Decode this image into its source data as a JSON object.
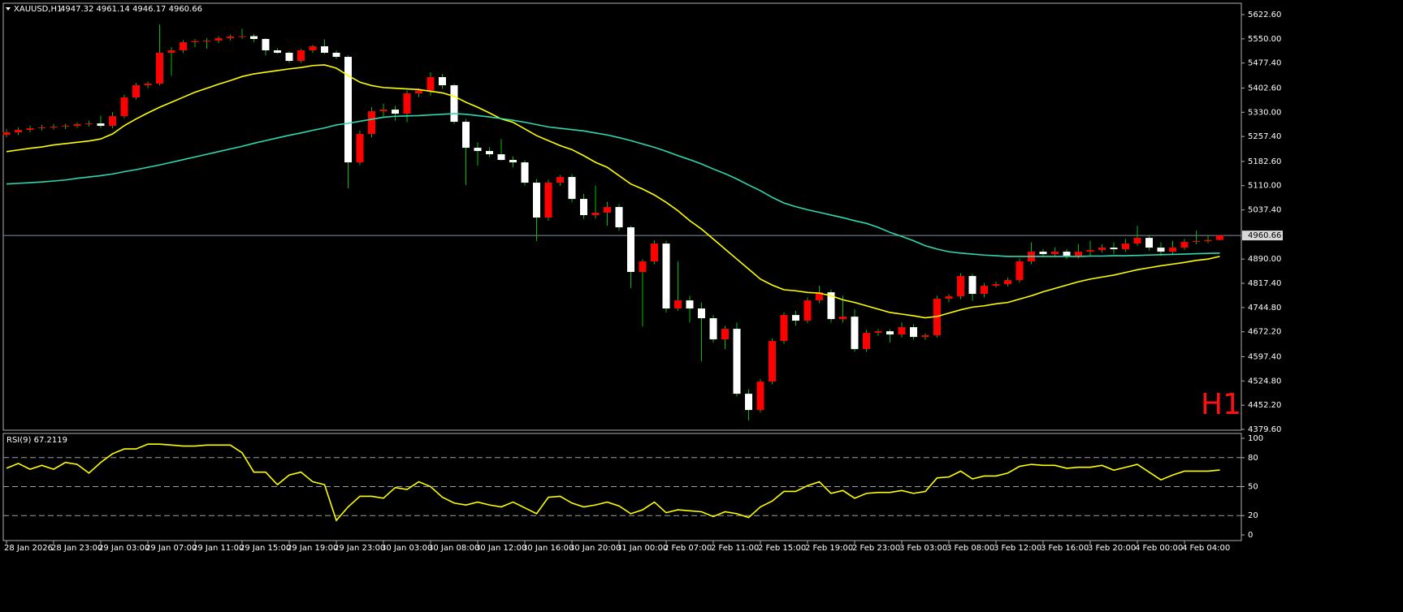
{
  "chart_data": [
    {
      "type": "candlestick",
      "title": "XAUUSD,H1",
      "ohlc_label": "4947.32 4961.14 4946.17 4960.66",
      "watermark": "H1",
      "ylim": [
        4377.2,
        5656.7
      ],
      "yticks": [
        {
          "value": 5622.6,
          "label": "5622.60"
        },
        {
          "value": 5550,
          "label": "5550.00"
        },
        {
          "value": 5477.4,
          "label": "5477.40"
        },
        {
          "value": 5402.6,
          "label": "5402.60"
        },
        {
          "value": 5330,
          "label": "5330.00"
        },
        {
          "value": 5257.4,
          "label": "5257.40"
        },
        {
          "value": 5182.6,
          "label": "5182.60"
        },
        {
          "value": 5110,
          "label": "5110.00"
        },
        {
          "value": 5037.4,
          "label": "5037.40"
        },
        {
          "value": 4890,
          "label": "4890.00"
        },
        {
          "value": 4817.4,
          "label": "4817.40"
        },
        {
          "value": 4744.8,
          "label": "4744.80"
        },
        {
          "value": 4672.2,
          "label": "4672.20"
        },
        {
          "value": 4597.4,
          "label": "4597.40"
        },
        {
          "value": 4524.8,
          "label": "4524.80"
        },
        {
          "value": 4452.2,
          "label": "4452.20"
        },
        {
          "value": 4379.6,
          "label": "4379.60"
        }
      ],
      "last_price": {
        "value": 4960.66,
        "label": "4960.66"
      },
      "up_color": "#ff0000",
      "down_color": "#ffffff",
      "wick_color": "#00c000",
      "categories": [
        "28 Jan 2026",
        null,
        null,
        null,
        "28 Jan 23:00",
        null,
        null,
        null,
        "29 Jan 03:00",
        null,
        null,
        null,
        "29 Jan 07:00",
        null,
        null,
        null,
        "29 Jan 11:00",
        null,
        null,
        null,
        "29 Jan 15:00",
        null,
        null,
        null,
        "29 Jan 19:00",
        null,
        null,
        null,
        "29 Jan 23:00",
        null,
        null,
        null,
        "30 Jan 03:00",
        null,
        null,
        null,
        "30 Jan 08:00",
        null,
        null,
        null,
        "30 Jan 12:00",
        null,
        null,
        null,
        "30 Jan 16:00",
        null,
        null,
        null,
        "30 Jan 20:00",
        null,
        null,
        null,
        "31 Jan 00:00",
        null,
        null,
        null,
        "2 Feb 07:00",
        null,
        null,
        null,
        "2 Feb 11:00",
        null,
        null,
        null,
        "2 Feb 15:00",
        null,
        null,
        null,
        "2 Feb 19:00",
        null,
        null,
        null,
        "2 Feb 23:00",
        null,
        null,
        null,
        "3 Feb 03:00",
        null,
        null,
        null,
        "3 Feb 08:00",
        null,
        null,
        null,
        "3 Feb 12:00",
        null,
        null,
        null,
        "3 Feb 16:00",
        null,
        null,
        null,
        "3 Feb 20:00",
        null,
        null,
        null,
        "4 Feb 00:00",
        null,
        null,
        null,
        "4 Feb 04:00",
        null,
        null,
        null
      ],
      "candles": [
        [
          5262,
          5280,
          5255,
          5269.8
        ],
        [
          5269.8,
          5285,
          5262,
          5277.1
        ],
        [
          5277.1,
          5290,
          5270,
          5282
        ],
        [
          5282,
          5292,
          5275,
          5284.4
        ],
        [
          5284.4,
          5295,
          5278,
          5286.9
        ],
        [
          5286.9,
          5296,
          5280,
          5289.3
        ],
        [
          5289.3,
          5300,
          5283,
          5294.2
        ],
        [
          5294.2,
          5305,
          5288,
          5296.6
        ],
        [
          5296.6,
          5320,
          5283,
          5289.3
        ],
        [
          5289.3,
          5330,
          5282,
          5318.5
        ],
        [
          5318.5,
          5382,
          5312,
          5374.4
        ],
        [
          5374.4,
          5418,
          5368,
          5410.9
        ],
        [
          5410.9,
          5422,
          5402,
          5415.8
        ],
        [
          5415.8,
          5593.4,
          5410,
          5508.3
        ],
        [
          5508.3,
          5525,
          5440,
          5515.6
        ],
        [
          5515.6,
          5546,
          5508,
          5539.9
        ],
        [
          5539.9,
          5550,
          5525,
          5543
        ],
        [
          5543,
          5552,
          5520,
          5544.7
        ],
        [
          5544.7,
          5558,
          5537,
          5552
        ],
        [
          5552,
          5562,
          5545,
          5556.9
        ],
        [
          5556.9,
          5580,
          5550,
          5558
        ],
        [
          5558,
          5565,
          5540,
          5549.6
        ],
        [
          5549.6,
          5552,
          5500,
          5515.6
        ],
        [
          5515.6,
          5522,
          5505,
          5508.3
        ],
        [
          5508.3,
          5512,
          5478,
          5483.9
        ],
        [
          5483.9,
          5520,
          5478,
          5515.6
        ],
        [
          5515.6,
          5532,
          5508,
          5527.7
        ],
        [
          5527.7,
          5548,
          5505,
          5508.3
        ],
        [
          5508.3,
          5515,
          5490,
          5496.1
        ],
        [
          5496.1,
          5500,
          5102,
          5179.8
        ],
        [
          5179.8,
          5275,
          5172,
          5265
        ],
        [
          5265,
          5345,
          5255,
          5333.1
        ],
        [
          5333.1,
          5356,
          5315,
          5337.9
        ],
        [
          5337.9,
          5350,
          5305,
          5325.8
        ],
        [
          5325.8,
          5395,
          5300,
          5386.6
        ],
        [
          5386.6,
          5402,
          5375,
          5395
        ],
        [
          5395,
          5450,
          5380,
          5435.3
        ],
        [
          5435.3,
          5445,
          5400,
          5410.9
        ],
        [
          5410.9,
          5415,
          5295,
          5301.4
        ],
        [
          5301.4,
          5310,
          5112,
          5223.6
        ],
        [
          5223.6,
          5240,
          5170,
          5213.9
        ],
        [
          5213.9,
          5225,
          5195,
          5204.1
        ],
        [
          5204.1,
          5250,
          5185,
          5187.1
        ],
        [
          5187.1,
          5198,
          5165,
          5179.8
        ],
        [
          5179.8,
          5186,
          5110,
          5119
        ],
        [
          5119,
          5130,
          4944,
          5014.4
        ],
        [
          5014.4,
          5128,
          5005,
          5119
        ],
        [
          5119,
          5142,
          5110,
          5136
        ],
        [
          5136,
          5145,
          5060,
          5070.3
        ],
        [
          5070.3,
          5085,
          5010,
          5021.7
        ],
        [
          5021.7,
          5110,
          5012,
          5029
        ],
        [
          5029,
          5062,
          4990,
          5046
        ],
        [
          5046,
          5055,
          4975,
          4985.2
        ],
        [
          4985.2,
          4990,
          4803,
          4851.4
        ],
        [
          4851.4,
          4890,
          4688,
          4883
        ],
        [
          4883,
          4946,
          4875,
          4936.5
        ],
        [
          4936.5,
          4945,
          4730,
          4741.9
        ],
        [
          4741.9,
          4883,
          4735,
          4766.2
        ],
        [
          4766.2,
          4780,
          4700,
          4741.9
        ],
        [
          4741.9,
          4760,
          4584,
          4712.7
        ],
        [
          4712.7,
          4722,
          4640,
          4649.4
        ],
        [
          4649.4,
          4690,
          4620,
          4681
        ],
        [
          4681,
          4700,
          4478,
          4486.4
        ],
        [
          4486.4,
          4500,
          4406,
          4437.7
        ],
        [
          4437.7,
          4530,
          4430,
          4522.9
        ],
        [
          4522.9,
          4652,
          4515,
          4644.5
        ],
        [
          4644.5,
          4730,
          4636,
          4722.4
        ],
        [
          4722.4,
          4735,
          4690,
          4705.4
        ],
        [
          4705.4,
          4775,
          4698,
          4766.2
        ],
        [
          4766.2,
          4810,
          4758,
          4790.5
        ],
        [
          4790.5,
          4798,
          4700,
          4710.2
        ],
        [
          4710.2,
          4780,
          4700,
          4717.5
        ],
        [
          4717.5,
          4740,
          4612,
          4620.2
        ],
        [
          4620.2,
          4678,
          4612,
          4668.9
        ],
        [
          4668.9,
          4680,
          4660,
          4673.7
        ],
        [
          4673.7,
          4680,
          4640,
          4664
        ],
        [
          4664,
          4700,
          4655,
          4685.9
        ],
        [
          4685.9,
          4695,
          4648,
          4656.7
        ],
        [
          4656.7,
          4668,
          4648,
          4661.6
        ],
        [
          4661.6,
          4780,
          4655,
          4771.1
        ],
        [
          4771.1,
          4785,
          4760,
          4778.4
        ],
        [
          4778.4,
          4848,
          4770,
          4839.2
        ],
        [
          4839.2,
          4846,
          4765,
          4785.7
        ],
        [
          4785.7,
          4818,
          4775,
          4810
        ],
        [
          4810,
          4822,
          4805,
          4814.8
        ],
        [
          4814.8,
          4835,
          4808,
          4827
        ],
        [
          4827,
          4892,
          4820,
          4883
        ],
        [
          4883,
          4940,
          4875,
          4912.2
        ],
        [
          4912.2,
          4920,
          4895,
          4904.9
        ],
        [
          4904.9,
          4925,
          4898,
          4912.2
        ],
        [
          4912.2,
          4920,
          4890,
          4900
        ],
        [
          4900,
          4935,
          4892,
          4912.2
        ],
        [
          4912.2,
          4945,
          4900,
          4917
        ],
        [
          4917,
          4935,
          4910,
          4924.3
        ],
        [
          4924.3,
          4940,
          4905,
          4919.5
        ],
        [
          4919.5,
          4950,
          4912,
          4936.5
        ],
        [
          4936.5,
          4990,
          4930,
          4953.5
        ],
        [
          4953.5,
          4960,
          4915,
          4924.3
        ],
        [
          4924.3,
          4940,
          4900,
          4912.2
        ],
        [
          4912.2,
          4945,
          4905,
          4924.3
        ],
        [
          4924.3,
          4950,
          4918,
          4941.4
        ],
        [
          4941.4,
          4975,
          4935,
          4943.8
        ],
        [
          4943.8,
          4960,
          4938,
          4947.3
        ],
        [
          4947.32,
          4961.14,
          4946.17,
          4960.66
        ]
      ],
      "series": [
        {
          "color": "#ffff00",
          "values": [
            5212,
            5217,
            5222,
            5226,
            5232,
            5236,
            5240,
            5244,
            5250,
            5265,
            5290,
            5310,
            5328,
            5345,
            5360,
            5375,
            5390,
            5402,
            5414,
            5425,
            5437,
            5445,
            5450,
            5455,
            5460,
            5464,
            5470,
            5472,
            5462,
            5440,
            5420,
            5410,
            5404,
            5402,
            5400,
            5398,
            5393,
            5388,
            5378,
            5360,
            5345,
            5328,
            5310,
            5300,
            5280,
            5260,
            5245,
            5230,
            5218,
            5200,
            5180,
            5165,
            5140,
            5115,
            5100,
            5082,
            5060,
            5035,
            5005,
            4980,
            4950,
            4920,
            4890,
            4860,
            4830,
            4812,
            4798,
            4795,
            4790,
            4788,
            4780,
            4768,
            4760,
            4750,
            4740,
            4730,
            4725,
            4720,
            4714,
            4718,
            4728,
            4738,
            4746,
            4750,
            4756,
            4760,
            4770,
            4780,
            4792,
            4802,
            4812,
            4822,
            4830,
            4836,
            4842,
            4850,
            4858,
            4864,
            4870,
            4875,
            4880,
            4886,
            4890,
            4898
          ]
        },
        {
          "color": "#30d8b0",
          "values": [
            5115,
            5117,
            5119,
            5121,
            5124,
            5127,
            5132,
            5136,
            5140,
            5145,
            5152,
            5158,
            5165,
            5172,
            5180,
            5188,
            5196,
            5204,
            5212,
            5220,
            5228,
            5237,
            5245,
            5253,
            5261,
            5268,
            5276,
            5283,
            5292,
            5297,
            5303,
            5309,
            5315,
            5318,
            5319,
            5320,
            5322,
            5324,
            5326,
            5324,
            5320,
            5316,
            5311,
            5306,
            5300,
            5293,
            5286,
            5282,
            5278,
            5274,
            5268,
            5262,
            5254,
            5245,
            5235,
            5225,
            5213,
            5200,
            5188,
            5175,
            5160,
            5146,
            5130,
            5112,
            5095,
            5075,
            5058,
            5047,
            5038,
            5030,
            5022,
            5014,
            5005,
            4997,
            4985,
            4970,
            4958,
            4945,
            4930,
            4920,
            4912,
            4908,
            4905,
            4902,
            4900,
            4898,
            4898,
            4898,
            4898,
            4898,
            4898,
            4898,
            4899,
            4899,
            4900,
            4900,
            4901,
            4902,
            4903,
            4904,
            4905,
            4906,
            4907,
            4908
          ]
        }
      ]
    },
    {
      "type": "line",
      "title": "RSI(9) 67.2119",
      "ylim": [
        -5,
        104.2
      ],
      "yticks": [
        100,
        80,
        50,
        20,
        0
      ],
      "levels": [
        80,
        50,
        20
      ],
      "series": [
        {
          "color": "#ffff00",
          "values": [
            69,
            74,
            68,
            72,
            68,
            75,
            73,
            64,
            75,
            84,
            89,
            89,
            94,
            94,
            93,
            92,
            92,
            93,
            93,
            93,
            85,
            65,
            65,
            52,
            62,
            65,
            55,
            52,
            15,
            29,
            40,
            40,
            38,
            49,
            47,
            55,
            50,
            39,
            33,
            31,
            34,
            31,
            29,
            34,
            28,
            22,
            39,
            40,
            33,
            29,
            31,
            34,
            30,
            22,
            26,
            34,
            23,
            26,
            25,
            24,
            19,
            24,
            22,
            18,
            29,
            35,
            45,
            45,
            51,
            55,
            43,
            46,
            38,
            43,
            44,
            44,
            46,
            43,
            45,
            59,
            60,
            66,
            58,
            61,
            61,
            64,
            71,
            73,
            72,
            72,
            69,
            70,
            70,
            72,
            67,
            70,
            73,
            65,
            57,
            62,
            66,
            66,
            66,
            67.2119
          ]
        }
      ]
    }
  ]
}
